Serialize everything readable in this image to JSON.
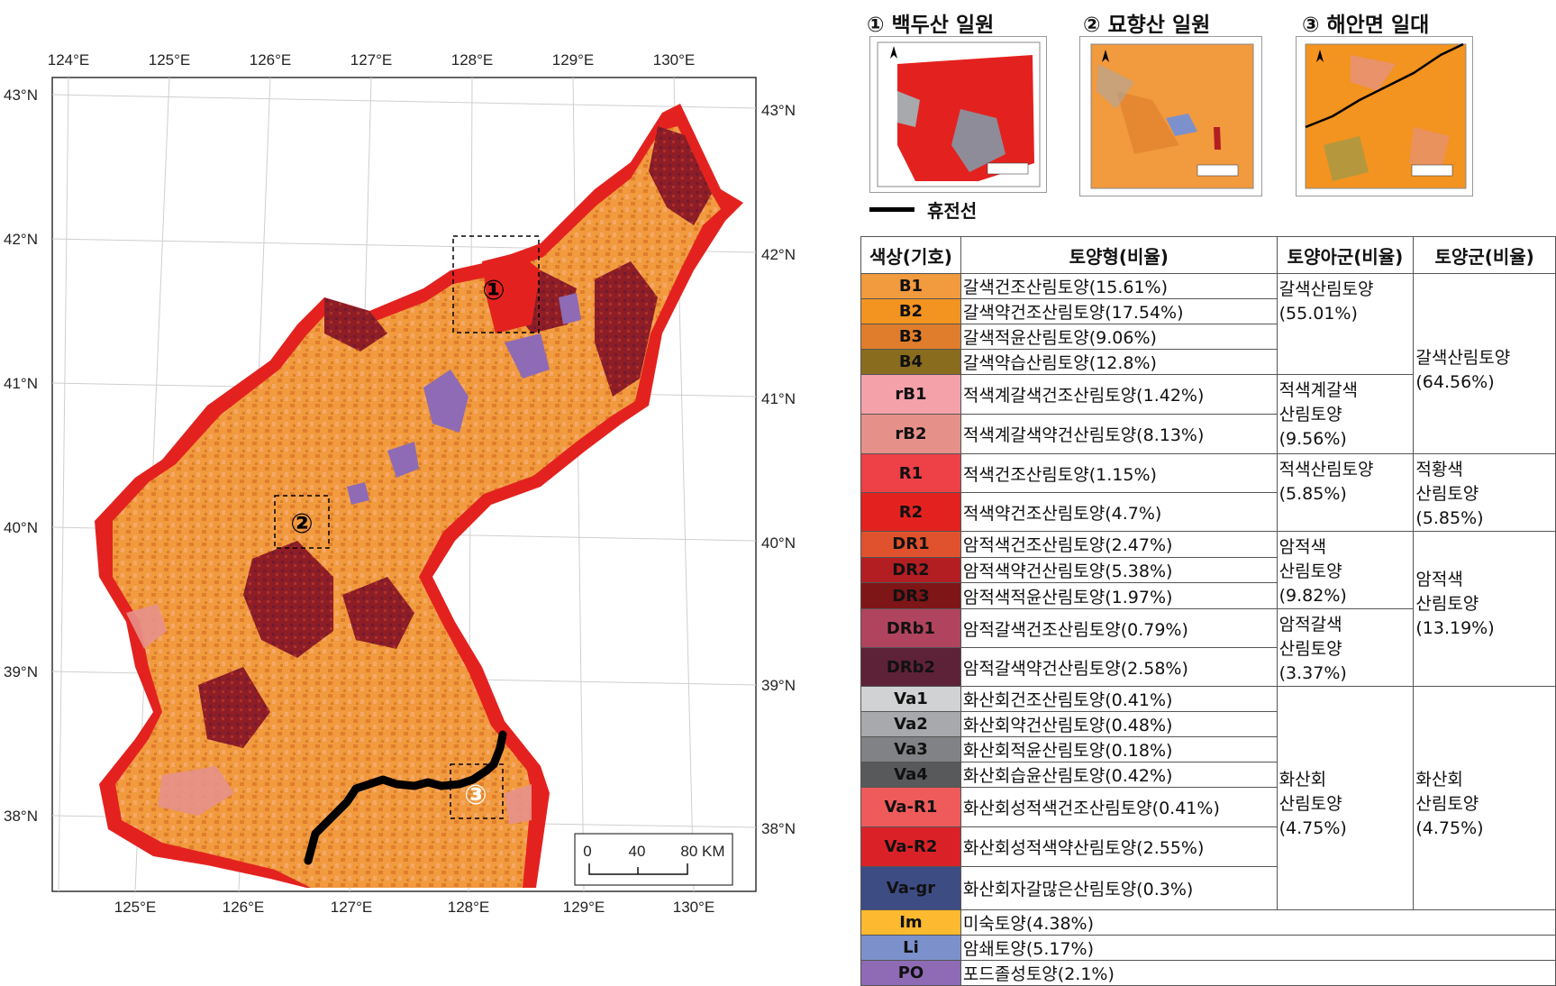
{
  "map": {
    "lon_ticks_top": [
      "124°E",
      "125°E",
      "126°E",
      "127°E",
      "128°E",
      "129°E",
      "130°E"
    ],
    "lon_ticks_bottom": [
      "125°E",
      "126°E",
      "127°E",
      "128°E",
      "129°E",
      "130°E"
    ],
    "lat_ticks_left": [
      "43°N",
      "42°N",
      "41°N",
      "40°N",
      "39°N",
      "38°N"
    ],
    "lat_ticks_right": [
      "43°N",
      "42°N",
      "41°N",
      "40°N",
      "39°N",
      "38°N"
    ],
    "study_area_markers": [
      "①",
      "②",
      "③"
    ],
    "scale_bar": {
      "labels": [
        "0",
        "40",
        "80 KM"
      ]
    }
  },
  "insets": [
    {
      "title": "① 백두산 일원"
    },
    {
      "title": "② 묘향산 일원"
    },
    {
      "title": "③ 해안면 일대"
    }
  ],
  "dmz_legend": {
    "label": "휴전선",
    "color": "#000000"
  },
  "table": {
    "headers": [
      "색상(기호)",
      "토양형(비율)",
      "토양아군(비율)",
      "토양군(비율)"
    ],
    "rows": [
      {
        "code": "B1",
        "color": "#F19A3E",
        "type": "갈색건조산림토양(15.61%)"
      },
      {
        "code": "B2",
        "color": "#F39320",
        "type": "갈색약건조산림토양(17.54%)"
      },
      {
        "code": "B3",
        "color": "#E07D2C",
        "type": "갈색적윤산림토양(9.06%)"
      },
      {
        "code": "B4",
        "color": "#8A6C1E",
        "type": "갈색약습산림토양(12.8%)"
      },
      {
        "code": "rB1",
        "color": "#F5A1AA",
        "type": "적색계갈색건조산림토양(1.42%)"
      },
      {
        "code": "rB2",
        "color": "#E59189",
        "type": "적색계갈색약건산림토양(8.13%)"
      },
      {
        "code": "R1",
        "color": "#EE4047",
        "type": "적색건조산림토양(1.15%)"
      },
      {
        "code": "R2",
        "color": "#E3221F",
        "type": "적색약건조산림토양(4.7%)"
      },
      {
        "code": "DR1",
        "color": "#E0522D",
        "type": "암적색건조산림토양(2.47%)"
      },
      {
        "code": "DR2",
        "color": "#B31E22",
        "type": "암적색약건산림토양(5.38%)"
      },
      {
        "code": "DR3",
        "color": "#7E1517",
        "type": "암적색적윤산림토양(1.97%)"
      },
      {
        "code": "DRb1",
        "color": "#B0445E",
        "type": "암적갈색건조산림토양(0.79%)"
      },
      {
        "code": "DRb2",
        "color": "#5E2238",
        "type": "암적갈색약건산림토양(2.58%)"
      },
      {
        "code": "Va1",
        "color": "#D0D2D3",
        "type": "화산회건조산림토양(0.41%)"
      },
      {
        "code": "Va2",
        "color": "#A7A9AC",
        "type": "화산회약건산림토양(0.48%)"
      },
      {
        "code": "Va3",
        "color": "#808285",
        "type": "화산회적윤산림토양(0.18%)"
      },
      {
        "code": "Va4",
        "color": "#58595B",
        "type": "화산회습윤산림토양(0.42%)"
      },
      {
        "code": "Va-R1",
        "color": "#EF5A5B",
        "type": "화산회성적색건조산림토양(0.41%)"
      },
      {
        "code": "Va-R2",
        "color": "#DA2128",
        "type": "화산회성적색약산림토양(2.55%)"
      },
      {
        "code": "Va-gr",
        "color": "#3E4C84",
        "type": "화산회자갈많은산림토양(0.3%)"
      },
      {
        "code": "Im",
        "color": "#FDB92F",
        "type": "미숙토양(4.38%)"
      },
      {
        "code": "Li",
        "color": "#7C91CC",
        "type": "암쇄토양(5.17%)"
      },
      {
        "code": "PO",
        "color": "#8E6BB4",
        "type": "포드졸성토양(2.1%)"
      }
    ],
    "subgroups": [
      "갈색산림토양 (55.01%)",
      "적색계갈색 산림토양 (9.56%)",
      "적색산림토양 (5.85%)",
      "암적색 산림토양 (9.82%)",
      "암적갈색 산림토양 (3.37%)",
      "화산회 산림토양 (4.75%)"
    ],
    "groups": [
      "갈색산림토양 (64.56%)",
      "적황색 산림토양 (5.85%)",
      "암적색 산림토양 (13.19%)",
      "화산회 산림토양 (4.75%)"
    ]
  }
}
